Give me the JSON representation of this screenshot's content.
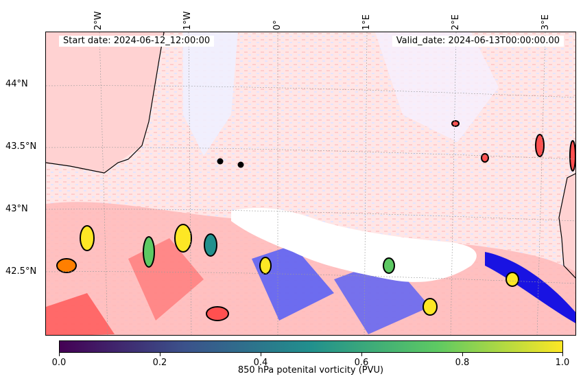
{
  "info": {
    "start_date": "Start date: 2024-06-12_12:00:00",
    "valid_date": "Valid_date: 2024-06-13T00:00:00.00"
  },
  "axes": {
    "lon_ticks": [
      "2°W",
      "1°W",
      "0°",
      "1°E",
      "2°E",
      "3°E"
    ],
    "lat_ticks": [
      "44°N",
      "43.5°N",
      "43°N",
      "42.5°N"
    ],
    "lon_range": [
      -2.6,
      3.35
    ],
    "lat_range": [
      42.0,
      44.45
    ]
  },
  "map": {
    "grid": true,
    "features": [
      "coastline",
      "france-west-coast",
      "spain-north-coast",
      "pyrenees-mask"
    ],
    "markers": [
      {
        "lon": -0.75,
        "lat": 43.38
      },
      {
        "lon": -0.5,
        "lat": 43.35
      }
    ]
  },
  "colorbar": {
    "label": "850 hPa potenital vorticity (PVU)",
    "min": 0.0,
    "max": 1.0,
    "ticks": [
      "0.0",
      "0.2",
      "0.4",
      "0.6",
      "0.8",
      "1.0"
    ],
    "colormap": "viridis",
    "colors": [
      "#440154",
      "#3b528b",
      "#21908d",
      "#5dc963",
      "#fde725"
    ]
  },
  "colors": {
    "positive_anomaly": "#ff9a9a",
    "negative_anomaly": "#5a6cff",
    "land_fill": "#ffd2d2",
    "sea_background": "#ffe9e9"
  }
}
